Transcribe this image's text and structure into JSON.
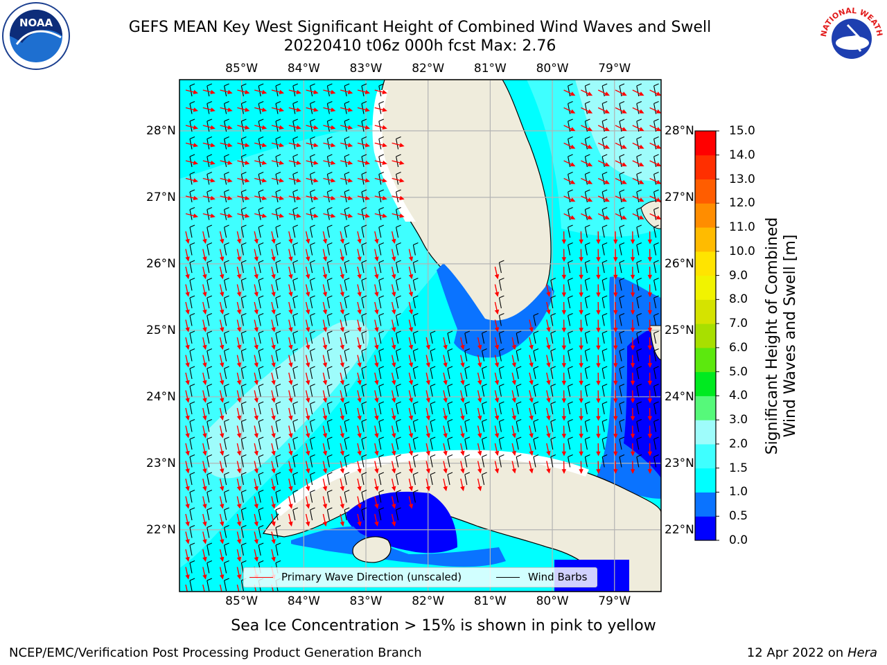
{
  "header": {
    "title_line1": "GEFS MEAN Key West Significant Height of Combined Wind Waves and Swell",
    "title_line2": "20220410 t06z 000h fcst   Max: 2.76"
  },
  "logos": {
    "left": {
      "icon": "noaa-logo-icon",
      "text": "NOAA"
    },
    "right": {
      "icon": "nws-logo-icon",
      "text": "NATIONAL WEATHER SERVICE"
    }
  },
  "map": {
    "lon_labels": [
      "85°W",
      "84°W",
      "83°W",
      "82°W",
      "81°W",
      "80°W",
      "79°W"
    ],
    "lat_labels": [
      "28°N",
      "27°N",
      "26°N",
      "25°N",
      "24°N",
      "23°N",
      "22°N"
    ],
    "lon_range": [
      -86.0,
      -78.25
    ],
    "lat_range": [
      21.07,
      28.77
    ],
    "legend": {
      "wave_label": "Primary Wave Direction (unscaled)",
      "barb_label": "Wind Barbs",
      "wave_color": "#ff0000",
      "barb_color": "#000000"
    },
    "colors": {
      "land": "#efecdc",
      "grid": "#b3b3b3",
      "wave_arrow": "#ff0000",
      "barb": "#000000"
    }
  },
  "colorbar": {
    "title_line1": "Significant Height of Combined",
    "title_line2": "Wind Waves and Swell [m]",
    "ticks": [
      "0.0",
      "0.5",
      "1.0",
      "1.5",
      "2.0",
      "3.0",
      "4.0",
      "5.0",
      "6.0",
      "7.0",
      "8.0",
      "9.0",
      "10.0",
      "11.0",
      "12.0",
      "13.0",
      "14.0",
      "15.0"
    ],
    "colors": [
      "#0000ff",
      "#0a73ff",
      "#00ffff",
      "#3fffff",
      "#9efcfb",
      "#56f97a",
      "#00ea20",
      "#5ce80e",
      "#a8df00",
      "#d5e300",
      "#f1f300",
      "#ffe400",
      "#ffbb00",
      "#ff8d00",
      "#ff5d00",
      "#ff2f00",
      "#ff0000"
    ]
  },
  "footer": {
    "note": "Sea Ice Concentration > 15% is shown in pink to yellow",
    "credit": "NCEP/EMC/Verification Post Processing Product Generation Branch",
    "date_prefix": "12 Apr 2022 on ",
    "date_machine": "Hera"
  }
}
